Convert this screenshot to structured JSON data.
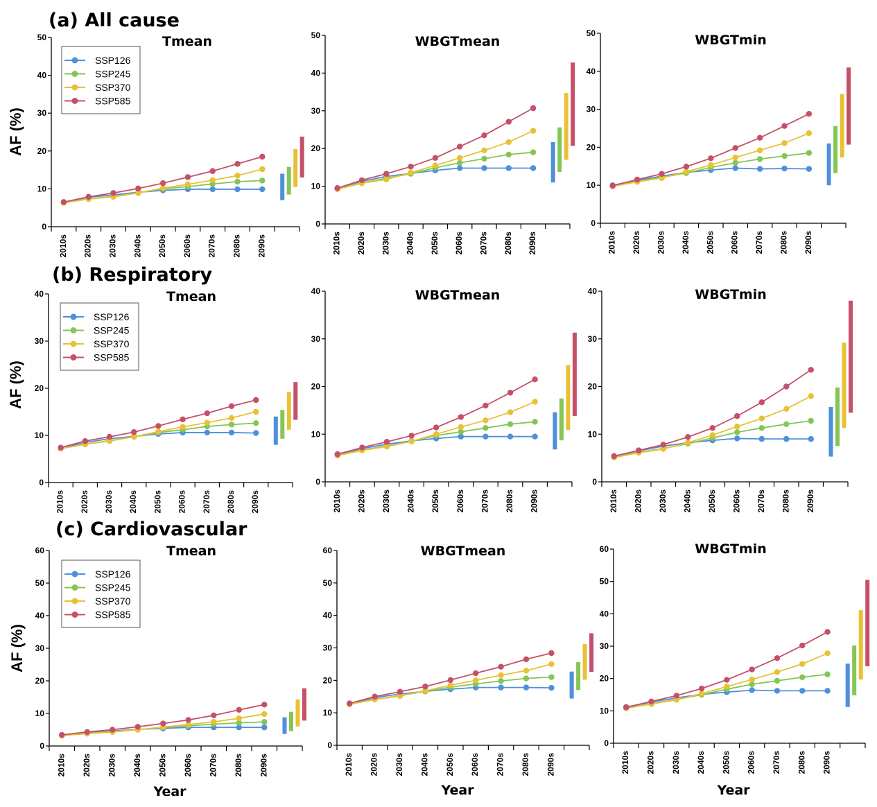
{
  "figure": {
    "y_axis_label": "AF (%)",
    "x_axis_label": "Year"
  },
  "legend": {
    "entries": [
      "SSP126",
      "SSP245",
      "SSP370",
      "SSP585"
    ]
  },
  "colors": {
    "SSP126": "#4f8fdc",
    "SSP245": "#84c656",
    "SSP370": "#e8c135",
    "SSP585": "#c55068"
  },
  "chart_data": [
    {
      "section": "(a) All cause",
      "title": "Tmean",
      "type": "line",
      "xlabel": "",
      "ylabel": "AF (%)",
      "ylim": [
        0,
        50
      ],
      "yticks": [
        0,
        10,
        20,
        30,
        40,
        50
      ],
      "categories": [
        "2010s",
        "2020s",
        "2030s",
        "2040s",
        "2050s",
        "2060s",
        "2070s",
        "2080s",
        "2090s"
      ],
      "legend": "top-left",
      "series": [
        {
          "name": "SSP126",
          "values": [
            6.5,
            7.8,
            8.4,
            9.1,
            9.6,
            9.9,
            9.9,
            9.9,
            9.9
          ],
          "range_2090s": [
            7.0,
            14.0
          ]
        },
        {
          "name": "SSP245",
          "values": [
            6.4,
            7.4,
            8.0,
            9.0,
            10.0,
            10.6,
            11.3,
            11.9,
            12.2
          ],
          "range_2090s": [
            8.5,
            15.8
          ]
        },
        {
          "name": "SSP370",
          "values": [
            6.3,
            7.3,
            7.9,
            8.9,
            10.2,
            11.2,
            12.3,
            13.5,
            15.2
          ],
          "range_2090s": [
            10.5,
            20.5
          ]
        },
        {
          "name": "SSP585",
          "values": [
            6.5,
            7.9,
            8.9,
            10.1,
            11.5,
            13.1,
            14.7,
            16.6,
            18.5
          ],
          "range_2090s": [
            13.0,
            23.8
          ]
        }
      ]
    },
    {
      "section": "",
      "title": "WBGTmean",
      "type": "line",
      "xlabel": "",
      "ylabel": "",
      "ylim": [
        0,
        50
      ],
      "yticks": [
        0,
        10,
        20,
        30,
        40,
        50
      ],
      "categories": [
        "2010s",
        "2020s",
        "2030s",
        "2040s",
        "2050s",
        "2060s",
        "2070s",
        "2080s",
        "2090s"
      ],
      "series": [
        {
          "name": "SSP126",
          "values": [
            9.5,
            11.3,
            12.6,
            13.4,
            14.2,
            14.8,
            14.8,
            14.8,
            14.8
          ],
          "range_2090s": [
            11.0,
            21.7
          ]
        },
        {
          "name": "SSP245",
          "values": [
            9.3,
            10.9,
            12.1,
            13.3,
            14.9,
            16.2,
            17.3,
            18.4,
            19.0
          ],
          "range_2090s": [
            13.8,
            25.6
          ]
        },
        {
          "name": "SSP370",
          "values": [
            9.2,
            10.8,
            11.8,
            13.6,
            15.5,
            17.5,
            19.5,
            21.7,
            24.7
          ],
          "range_2090s": [
            17.0,
            34.7
          ]
        },
        {
          "name": "SSP585",
          "values": [
            9.5,
            11.6,
            13.3,
            15.2,
            17.5,
            20.5,
            23.5,
            27.1,
            30.7
          ],
          "range_2090s": [
            20.7,
            42.8
          ]
        }
      ]
    },
    {
      "section": "",
      "title": "WBGTmin",
      "type": "line",
      "xlabel": "",
      "ylabel": "",
      "ylim": [
        0,
        50
      ],
      "yticks": [
        0,
        10,
        20,
        30,
        40,
        50
      ],
      "categories": [
        "2010s",
        "2020s",
        "2030s",
        "2040s",
        "2050s",
        "2060s",
        "2070s",
        "2080s",
        "2090s"
      ],
      "series": [
        {
          "name": "SSP126",
          "values": [
            10.0,
            11.3,
            12.4,
            13.4,
            14.0,
            14.5,
            14.3,
            14.4,
            14.3
          ],
          "range_2090s": [
            10.0,
            21.0
          ]
        },
        {
          "name": "SSP245",
          "values": [
            9.8,
            11.0,
            12.1,
            13.2,
            14.7,
            15.9,
            16.9,
            17.7,
            18.5
          ],
          "range_2090s": [
            13.2,
            25.6
          ]
        },
        {
          "name": "SSP370",
          "values": [
            9.7,
            10.9,
            11.9,
            13.6,
            15.3,
            17.3,
            19.2,
            21.1,
            23.7
          ],
          "range_2090s": [
            17.3,
            34.0
          ]
        },
        {
          "name": "SSP585",
          "values": [
            9.9,
            11.5,
            13.0,
            14.9,
            17.1,
            19.8,
            22.5,
            25.6,
            28.8
          ],
          "range_2090s": [
            20.7,
            41.0
          ]
        }
      ]
    },
    {
      "section": "(b) Respiratory",
      "title": "Tmean",
      "type": "line",
      "xlabel": "",
      "ylabel": "AF (%)",
      "ylim": [
        0,
        40
      ],
      "yticks": [
        0,
        10,
        20,
        30,
        40
      ],
      "categories": [
        "2010s",
        "2020s",
        "2030s",
        "2040s",
        "2050s",
        "2060s",
        "2070s",
        "2080s",
        "2090s"
      ],
      "legend": "top-left",
      "series": [
        {
          "name": "SSP126",
          "values": [
            7.3,
            8.5,
            9.3,
            9.8,
            10.3,
            10.6,
            10.6,
            10.6,
            10.5
          ],
          "range_2090s": [
            8.0,
            14.0
          ]
        },
        {
          "name": "SSP245",
          "values": [
            7.2,
            8.1,
            8.9,
            9.7,
            10.6,
            11.2,
            11.9,
            12.3,
            12.6
          ],
          "range_2090s": [
            9.3,
            15.4
          ]
        },
        {
          "name": "SSP370",
          "values": [
            7.2,
            8.1,
            8.8,
            9.7,
            10.8,
            11.8,
            12.7,
            13.7,
            15.0
          ],
          "range_2090s": [
            11.2,
            19.2
          ]
        },
        {
          "name": "SSP585",
          "values": [
            7.4,
            8.8,
            9.7,
            10.7,
            12.0,
            13.4,
            14.7,
            16.2,
            17.5
          ],
          "range_2090s": [
            13.3,
            21.3
          ]
        }
      ]
    },
    {
      "section": "",
      "title": "WBGTmean",
      "type": "line",
      "xlabel": "",
      "ylabel": "",
      "ylim": [
        0,
        40
      ],
      "yticks": [
        0,
        10,
        20,
        30,
        40
      ],
      "categories": [
        "2010s",
        "2020s",
        "2030s",
        "2040s",
        "2050s",
        "2060s",
        "2070s",
        "2080s",
        "2090s"
      ],
      "series": [
        {
          "name": "SSP126",
          "values": [
            5.8,
            7.0,
            7.9,
            8.6,
            9.1,
            9.5,
            9.5,
            9.5,
            9.5
          ],
          "range_2090s": [
            6.8,
            14.6
          ]
        },
        {
          "name": "SSP245",
          "values": [
            5.6,
            6.7,
            7.5,
            8.5,
            9.7,
            10.5,
            11.3,
            12.1,
            12.6
          ],
          "range_2090s": [
            8.7,
            17.5
          ]
        },
        {
          "name": "SSP370",
          "values": [
            5.5,
            6.6,
            7.4,
            8.5,
            10.0,
            11.5,
            12.9,
            14.6,
            16.8
          ],
          "range_2090s": [
            10.9,
            24.5
          ]
        },
        {
          "name": "SSP585",
          "values": [
            5.8,
            7.2,
            8.4,
            9.7,
            11.4,
            13.6,
            16.0,
            18.7,
            21.5
          ],
          "range_2090s": [
            13.8,
            31.3
          ]
        }
      ]
    },
    {
      "section": "",
      "title": "WBGTmin",
      "type": "line",
      "xlabel": "",
      "ylabel": "",
      "ylim": [
        0,
        40
      ],
      "yticks": [
        0,
        10,
        20,
        30,
        40
      ],
      "categories": [
        "2010s",
        "2020s",
        "2030s",
        "2040s",
        "2050s",
        "2060s",
        "2070s",
        "2080s",
        "2090s"
      ],
      "series": [
        {
          "name": "SSP126",
          "values": [
            5.4,
            6.5,
            7.5,
            8.2,
            8.7,
            9.1,
            9.0,
            9.0,
            9.0
          ],
          "range_2090s": [
            5.3,
            15.7
          ]
        },
        {
          "name": "SSP245",
          "values": [
            5.2,
            6.2,
            7.0,
            8.0,
            9.2,
            10.4,
            11.3,
            12.1,
            12.8
          ],
          "range_2090s": [
            7.5,
            19.8
          ]
        },
        {
          "name": "SSP370",
          "values": [
            5.1,
            6.1,
            6.9,
            8.2,
            9.8,
            11.6,
            13.3,
            15.3,
            18.0
          ],
          "range_2090s": [
            11.3,
            29.2
          ]
        },
        {
          "name": "SSP585",
          "values": [
            5.4,
            6.6,
            7.8,
            9.4,
            11.3,
            13.8,
            16.7,
            20.0,
            23.5
          ],
          "range_2090s": [
            14.5,
            38.0
          ]
        }
      ]
    },
    {
      "section": "(c) Cardiovascular",
      "title": "Tmean",
      "type": "line",
      "xlabel": "Year",
      "ylabel": "AF (%)",
      "ylim": [
        0,
        60
      ],
      "yticks": [
        0,
        10,
        20,
        30,
        40,
        50,
        60
      ],
      "categories": [
        "2010s",
        "2020s",
        "2030s",
        "2040s",
        "2050s",
        "2060s",
        "2070s",
        "2080s",
        "2090s"
      ],
      "legend": "top-left",
      "series": [
        {
          "name": "SSP126",
          "values": [
            3.3,
            4.1,
            4.6,
            5.1,
            5.4,
            5.7,
            5.7,
            5.7,
            5.7
          ],
          "range_2090s": [
            3.7,
            8.8
          ]
        },
        {
          "name": "SSP245",
          "values": [
            3.2,
            3.9,
            4.4,
            5.0,
            5.7,
            6.2,
            6.7,
            7.1,
            7.4
          ],
          "range_2090s": [
            4.6,
            10.5
          ]
        },
        {
          "name": "SSP370",
          "values": [
            3.2,
            3.8,
            4.3,
            5.0,
            5.8,
            6.6,
            7.4,
            8.5,
            9.8
          ],
          "range_2090s": [
            6.0,
            14.3
          ]
        },
        {
          "name": "SSP585",
          "values": [
            3.4,
            4.3,
            5.0,
            5.9,
            6.9,
            8.0,
            9.4,
            11.1,
            12.7
          ],
          "range_2090s": [
            7.8,
            17.7
          ]
        }
      ]
    },
    {
      "section": "",
      "title": "WBGTmean",
      "type": "line",
      "xlabel": "Year",
      "ylabel": "",
      "ylim": [
        0,
        60
      ],
      "yticks": [
        0,
        10,
        20,
        30,
        40,
        50,
        60
      ],
      "categories": [
        "2010s",
        "2020s",
        "2030s",
        "2040s",
        "2050s",
        "2060s",
        "2070s",
        "2080s",
        "2090s"
      ],
      "series": [
        {
          "name": "SSP126",
          "values": [
            12.8,
            14.7,
            15.8,
            16.6,
            17.3,
            17.8,
            17.8,
            17.8,
            17.7
          ],
          "range_2090s": [
            14.4,
            22.7
          ]
        },
        {
          "name": "SSP245",
          "values": [
            12.7,
            14.2,
            15.3,
            16.6,
            17.9,
            18.9,
            19.8,
            20.6,
            21.0
          ],
          "range_2090s": [
            17.0,
            25.6
          ]
        },
        {
          "name": "SSP370",
          "values": [
            12.6,
            14.1,
            15.2,
            16.8,
            18.5,
            20.0,
            21.6,
            23.0,
            25.0
          ],
          "range_2090s": [
            20.2,
            31.2
          ]
        },
        {
          "name": "SSP585",
          "values": [
            12.9,
            15.0,
            16.5,
            18.1,
            20.1,
            22.2,
            24.2,
            26.5,
            28.4
          ],
          "range_2090s": [
            22.6,
            34.5
          ]
        }
      ]
    },
    {
      "section": "",
      "title": "WBGTmin",
      "type": "line",
      "xlabel": "Year",
      "ylabel": "",
      "ylim": [
        0,
        60
      ],
      "yticks": [
        0,
        10,
        20,
        30,
        40,
        50,
        60
      ],
      "categories": [
        "2010s",
        "2020s",
        "2030s",
        "2040s",
        "2050s",
        "2060s",
        "2070s",
        "2080s",
        "2090s"
      ],
      "series": [
        {
          "name": "SSP126",
          "values": [
            11.2,
            12.7,
            14.0,
            15.1,
            15.8,
            16.4,
            16.2,
            16.2,
            16.2
          ],
          "range_2090s": [
            11.2,
            24.6
          ]
        },
        {
          "name": "SSP245",
          "values": [
            10.9,
            12.2,
            13.5,
            15.0,
            16.7,
            18.2,
            19.3,
            20.4,
            21.3
          ],
          "range_2090s": [
            14.8,
            30.2
          ]
        },
        {
          "name": "SSP370",
          "values": [
            10.8,
            12.1,
            13.4,
            15.3,
            17.5,
            19.7,
            22.0,
            24.5,
            27.8
          ],
          "range_2090s": [
            19.7,
            41.1
          ]
        },
        {
          "name": "SSP585",
          "values": [
            11.1,
            12.9,
            14.7,
            16.9,
            19.6,
            22.8,
            26.3,
            30.2,
            34.4
          ],
          "range_2090s": [
            23.8,
            50.5
          ]
        }
      ]
    }
  ]
}
